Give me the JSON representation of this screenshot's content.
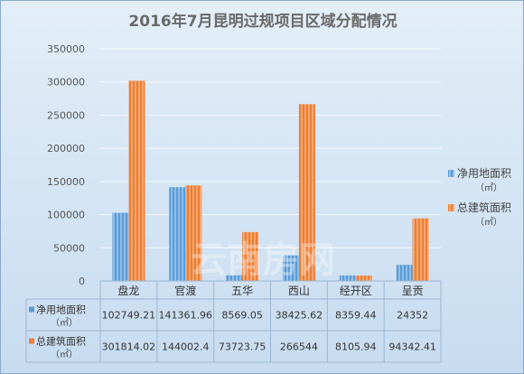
{
  "chart_data": {
    "type": "bar",
    "title": "2016年7月昆明过规项目区域分配情况",
    "categories": [
      "盘龙",
      "官渡",
      "五华",
      "西山",
      "经开区",
      "呈贡"
    ],
    "series": [
      {
        "name": "净用地面积",
        "unit": "（㎡）",
        "values": [
          102749.21,
          141361.96,
          8569.05,
          38425.62,
          8359.44,
          24352
        ],
        "labels": [
          "102749.21",
          "141361.96",
          "8569.05",
          "38425.62",
          "8359.44",
          "24352"
        ],
        "color": "#5b9bd5"
      },
      {
        "name": "总建筑面积",
        "unit": "（㎡）",
        "values": [
          301814.02,
          144002.4,
          73723.75,
          266544,
          8105.94,
          94342.41
        ],
        "labels": [
          "301814.02",
          "144002.4",
          "73723.75",
          "266544",
          "8105.94",
          "94342.41"
        ],
        "color": "#ed7d31"
      }
    ],
    "ylim": [
      0,
      350000
    ],
    "yticks": [
      "0",
      "50000",
      "100000",
      "150000",
      "200000",
      "250000",
      "300000",
      "350000"
    ],
    "grid": true,
    "legend": "right",
    "data_table": true
  },
  "watermark": "云南房网"
}
